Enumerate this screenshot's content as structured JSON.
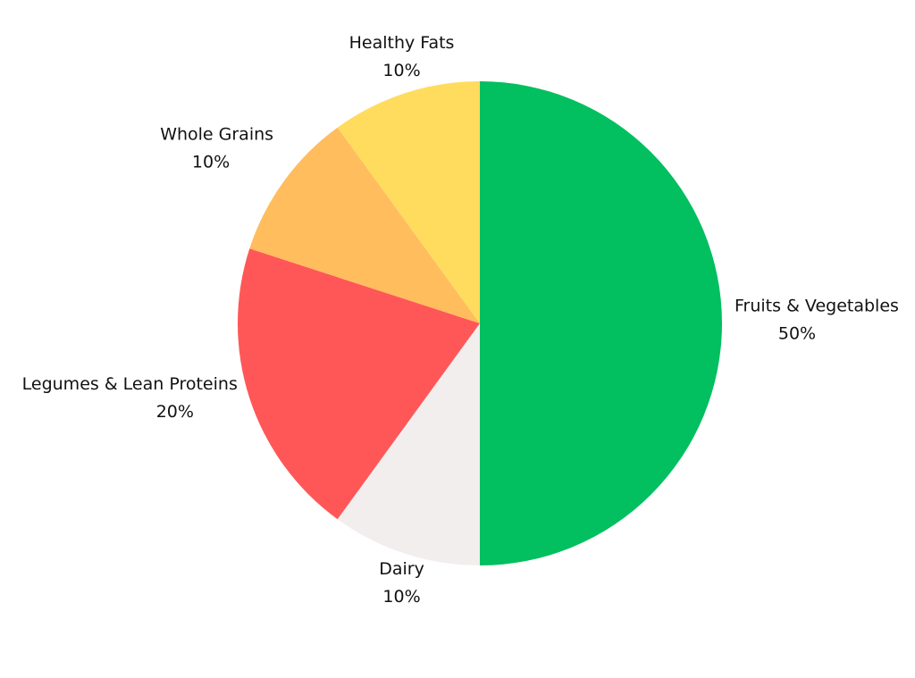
{
  "chart_data": {
    "type": "pie",
    "title": "",
    "start": "12 o'clock",
    "direction": "clockwise",
    "slices": [
      {
        "label": "Fruits & Vegetables",
        "value": 50,
        "display": "50%",
        "color": "#02bf5f"
      },
      {
        "label": "Dairy",
        "value": 10,
        "display": "10%",
        "color": "#f2eeee"
      },
      {
        "label": "Legumes & Lean Proteins",
        "value": 20,
        "display": "20%",
        "color": "#ff5757"
      },
      {
        "label": "Whole Grains",
        "value": 10,
        "display": "10%",
        "color": "#ffbd5d"
      },
      {
        "label": "Healthy Fats",
        "value": 10,
        "display": "10%",
        "color": "#ffdc5e"
      }
    ]
  }
}
